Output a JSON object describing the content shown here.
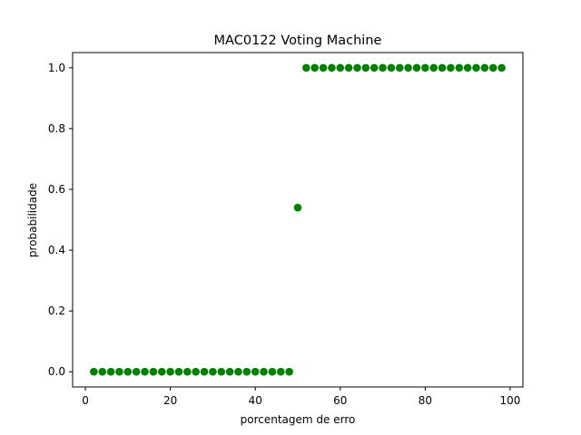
{
  "chart_data": {
    "type": "scatter",
    "title": "MAC0122 Voting Machine",
    "xlabel": "porcentagem de erro",
    "ylabel": "probabilidade",
    "xlim": [
      -3,
      103
    ],
    "ylim": [
      -0.05,
      1.05
    ],
    "xticks": [
      0,
      20,
      40,
      60,
      80,
      100
    ],
    "xtick_labels": [
      "0",
      "20",
      "40",
      "60",
      "80",
      "100"
    ],
    "yticks": [
      0.0,
      0.2,
      0.4,
      0.6,
      0.8,
      1.0
    ],
    "ytick_labels": [
      "0.0",
      "0.2",
      "0.4",
      "0.6",
      "0.8",
      "1.0"
    ],
    "grid": false,
    "color": "#008000",
    "series": [
      {
        "x": [
          2,
          4,
          6,
          8,
          10,
          12,
          14,
          16,
          18,
          20,
          22,
          24,
          26,
          28,
          30,
          32,
          34,
          36,
          38,
          40,
          42,
          44,
          46,
          48,
          50,
          52,
          54,
          56,
          58,
          60,
          62,
          64,
          66,
          68,
          70,
          72,
          74,
          76,
          78,
          80,
          82,
          84,
          86,
          88,
          90,
          92,
          94,
          96,
          98
        ],
        "y": [
          0,
          0,
          0,
          0,
          0,
          0,
          0,
          0,
          0,
          0,
          0,
          0,
          0,
          0,
          0,
          0,
          0,
          0,
          0,
          0,
          0,
          0,
          0,
          0,
          0.54,
          1,
          1,
          1,
          1,
          1,
          1,
          1,
          1,
          1,
          1,
          1,
          1,
          1,
          1,
          1,
          1,
          1,
          1,
          1,
          1,
          1,
          1,
          1,
          1
        ]
      }
    ]
  }
}
